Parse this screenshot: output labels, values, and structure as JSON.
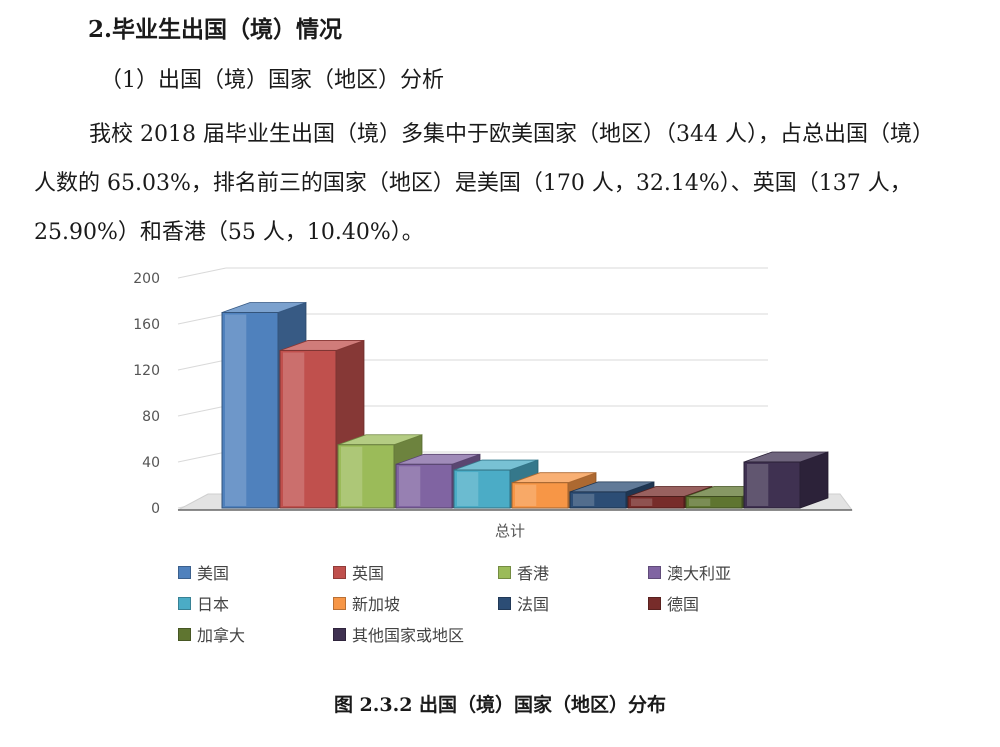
{
  "section": {
    "heading": "2.毕业生出国（境）情况",
    "subheading": "（1）出国（境）国家（地区）分析",
    "paragraph": "我校 2018 届毕业生出国（境）多集中于欧美国家（地区）（344 人），占总出国（境）人数的 65.03%，排名前三的国家（地区）是美国（170 人，32.14%）、英国（137 人，25.90%）和香港（55 人，10.40%）。"
  },
  "caption": "图 2.3.2 出国（境）国家（地区）分布",
  "chart_data": {
    "type": "bar",
    "title": "",
    "xlabel": "总计",
    "ylabel": "",
    "ylim": [
      0,
      200
    ],
    "yticks": [
      "0",
      "40",
      "80",
      "120",
      "160",
      "200"
    ],
    "grid": true,
    "legend_position": "bottom",
    "categories": [
      "总计"
    ],
    "series": [
      {
        "name": "美国",
        "values": [
          170
        ],
        "color": "#4f81bd"
      },
      {
        "name": "英国",
        "values": [
          137
        ],
        "color": "#c0504d"
      },
      {
        "name": "香港",
        "values": [
          55
        ],
        "color": "#9bbb59"
      },
      {
        "name": "澳大利亚",
        "values": [
          38
        ],
        "color": "#8064a2"
      },
      {
        "name": "日本",
        "values": [
          33
        ],
        "color": "#4bacc6"
      },
      {
        "name": "新加坡",
        "values": [
          22
        ],
        "color": "#f79646"
      },
      {
        "name": "法国",
        "values": [
          14
        ],
        "color": "#2c4d75"
      },
      {
        "name": "德国",
        "values": [
          10
        ],
        "color": "#772c2a"
      },
      {
        "name": "加拿大",
        "values": [
          10
        ],
        "color": "#5f7530"
      },
      {
        "name": "其他国家或地区",
        "values": [
          40
        ],
        "color": "#3f3151"
      }
    ]
  }
}
